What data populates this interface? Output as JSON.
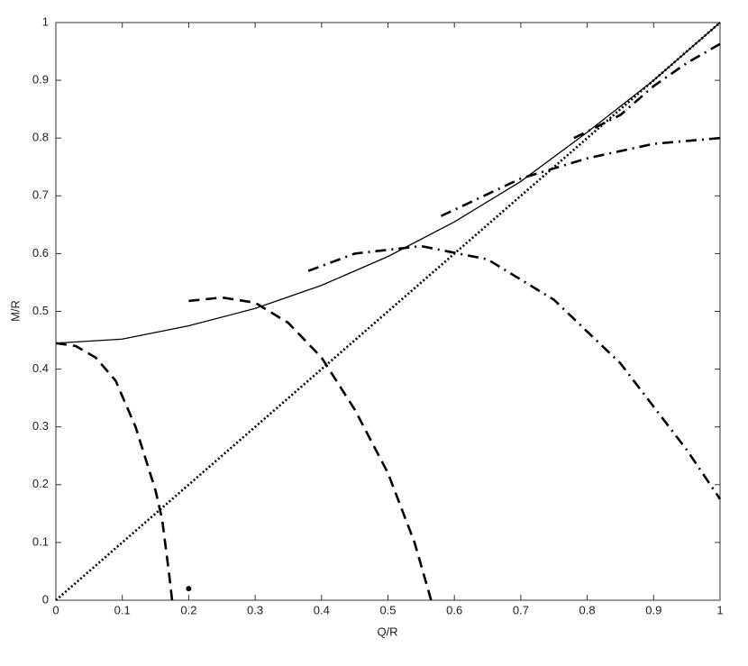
{
  "chart_data": {
    "type": "line",
    "xlabel": "Q/R",
    "ylabel": "M/R",
    "xlim": [
      0,
      1
    ],
    "ylim": [
      0,
      1
    ],
    "xticks": [
      0,
      0.1,
      0.2,
      0.3,
      0.4,
      0.5,
      0.6,
      0.7,
      0.8,
      0.9,
      1
    ],
    "yticks": [
      0,
      0.1,
      0.2,
      0.3,
      0.4,
      0.5,
      0.6,
      0.7,
      0.8,
      0.9,
      1
    ],
    "grid": false,
    "series": [
      {
        "color": "#000000",
        "style": "solid",
        "x": [
          0,
          0.1,
          0.2,
          0.3,
          0.4,
          0.5,
          0.6,
          0.7,
          0.8,
          0.9,
          1
        ],
        "values": [
          0.445,
          0.452,
          0.475,
          0.505,
          0.545,
          0.595,
          0.655,
          0.725,
          0.81,
          0.9,
          1
        ]
      },
      {
        "color": "#000000",
        "style": "dotted",
        "x": [
          0,
          1
        ],
        "values": [
          0,
          1
        ]
      },
      {
        "color": "#000000",
        "style": "dashed",
        "x": [
          0,
          0.03,
          0.06,
          0.09,
          0.12,
          0.15,
          0.16,
          0.17,
          0.175
        ],
        "values": [
          0.445,
          0.44,
          0.42,
          0.38,
          0.3,
          0.19,
          0.14,
          0.05,
          0
        ]
      },
      {
        "color": "#000000",
        "style": "dashed",
        "x": [
          0.2,
          0.25,
          0.3,
          0.35,
          0.4,
          0.45,
          0.5,
          0.54,
          0.565
        ],
        "values": [
          0.518,
          0.524,
          0.515,
          0.48,
          0.42,
          0.33,
          0.22,
          0.1,
          0
        ]
      },
      {
        "color": "#000000",
        "style": "dashdot",
        "x": [
          0.38,
          0.45,
          0.55,
          0.65,
          0.75,
          0.85,
          0.95,
          1
        ],
        "values": [
          0.57,
          0.6,
          0.613,
          0.59,
          0.52,
          0.41,
          0.26,
          0.175
        ]
      },
      {
        "color": "#000000",
        "style": "dashdot",
        "x": [
          0.58,
          0.7,
          0.8,
          0.9,
          1
        ],
        "values": [
          0.665,
          0.73,
          0.765,
          0.79,
          0.8
        ]
      },
      {
        "color": "#000000",
        "style": "dashdot",
        "x": [
          0.78,
          0.85,
          0.9,
          0.95,
          1
        ],
        "values": [
          0.8,
          0.84,
          0.89,
          0.93,
          0.963
        ]
      },
      {
        "color": "#000000",
        "style": "marker",
        "x": [
          0.2
        ],
        "values": [
          0.02
        ]
      }
    ]
  }
}
